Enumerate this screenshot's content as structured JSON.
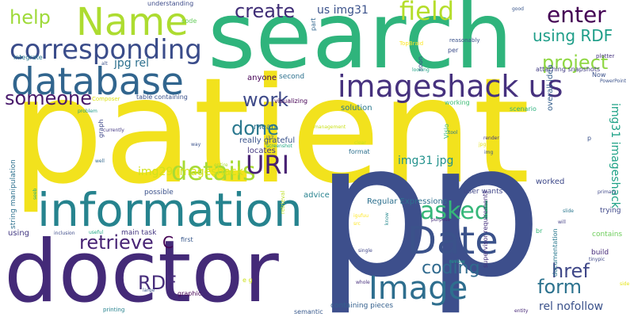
{
  "words": [
    {
      "text": "patient",
      "color": "#f2e21d"
    },
    {
      "text": "pp",
      "color": "#3d4f8c"
    },
    {
      "text": "search",
      "color": "#2fb47c"
    },
    {
      "text": "doctor",
      "color": "#442a78"
    },
    {
      "text": "information",
      "color": "#26838e"
    },
    {
      "text": "database",
      "color": "#31658e"
    },
    {
      "text": "Name",
      "color": "#addc30"
    },
    {
      "text": "Date",
      "color": "#3b528b"
    },
    {
      "text": "corresponding",
      "color": "#3a4c8a"
    },
    {
      "text": "imageshack us",
      "color": "#46317e"
    },
    {
      "text": "Image",
      "color": "#2e6e8e"
    },
    {
      "text": "create",
      "color": "#3f2d76"
    },
    {
      "text": "field",
      "color": "#b5de2b"
    },
    {
      "text": "enter",
      "color": "#440154"
    },
    {
      "text": "using RDF",
      "color": "#1f9e89"
    },
    {
      "text": "help",
      "color": "#9fda3a"
    },
    {
      "text": "details",
      "color": "#a8db34"
    },
    {
      "text": "URI",
      "color": "#482173"
    },
    {
      "text": "asked",
      "color": "#35b779"
    },
    {
      "text": "work",
      "color": "#3e4a89"
    },
    {
      "text": "done",
      "color": "#2a788e"
    },
    {
      "text": "someone",
      "color": "#48196b"
    },
    {
      "text": "project",
      "color": "#8fd744"
    },
    {
      "text": "retrieve",
      "color": "#482475"
    },
    {
      "text": "coding",
      "color": "#306a8e"
    },
    {
      "text": "href",
      "color": "#3f4788"
    },
    {
      "text": "form",
      "color": "#2c728e"
    },
    {
      "text": "RDF",
      "color": "#472d7b"
    },
    {
      "text": "C",
      "color": "#440154"
    },
    {
      "text": "img31 imageshack",
      "color": "#1fa287"
    },
    {
      "text": "img31 jpg",
      "color": "#21918c"
    },
    {
      "text": "img29 imageshack",
      "color": "#d2e21b"
    },
    {
      "text": "jpg rel",
      "color": "#2d708e"
    },
    {
      "text": "rel nofollow",
      "color": "#3b528b"
    },
    {
      "text": "us img31",
      "color": "#3b528b"
    },
    {
      "text": "anyone",
      "color": "#440154"
    },
    {
      "text": "second",
      "color": "#2d718e"
    },
    {
      "text": "solution",
      "color": "#2a788e"
    },
    {
      "text": "locates",
      "color": "#453882"
    },
    {
      "text": "mean",
      "color": "#2c728e"
    },
    {
      "text": "really grateful",
      "color": "#3a548c"
    },
    {
      "text": "visualizing",
      "color": "#440154"
    },
    {
      "text": "format",
      "color": "#2d708e"
    },
    {
      "text": "overall idea",
      "color": "#355f8d"
    },
    {
      "text": "worked",
      "color": "#3e4989"
    },
    {
      "text": "Regular Expressions",
      "color": "#2d708e"
    },
    {
      "text": "advice",
      "color": "#26828e"
    },
    {
      "text": "possible",
      "color": "#3b528b"
    },
    {
      "text": "user wants",
      "color": "#404688"
    },
    {
      "text": "main task",
      "color": "#453781"
    },
    {
      "text": "first",
      "color": "#38588c"
    },
    {
      "text": "string manipulation",
      "color": "#2d708e"
    },
    {
      "text": "graph",
      "color": "#3f4889"
    },
    {
      "text": "documentation",
      "color": "#2a788e"
    },
    {
      "text": "contains",
      "color": "#6ccd5a"
    },
    {
      "text": "build",
      "color": "#472c7a"
    },
    {
      "text": "trying",
      "color": "#3f4889"
    },
    {
      "text": "containing pieces",
      "color": "#34608d"
    },
    {
      "text": "supervisor requirements",
      "color": "#46327e"
    },
    {
      "text": "table containing",
      "color": "#3b528b"
    },
    {
      "text": "working",
      "color": "#3dbc74"
    },
    {
      "text": "scenario",
      "color": "#2db27d"
    },
    {
      "text": "attaching snapshots",
      "color": "#433e85"
    },
    {
      "text": "integrate",
      "color": "#2a778e"
    },
    {
      "text": "understanding",
      "color": "#3e4c8a"
    },
    {
      "text": "semantic",
      "color": "#38598c"
    },
    {
      "text": "graphic",
      "color": "#440154"
    },
    {
      "text": "printing",
      "color": "#26828e"
    },
    {
      "text": "using",
      "color": "#443a83"
    },
    {
      "text": "code",
      "color": "#67cc5c"
    },
    {
      "text": "part",
      "color": "#31668e"
    },
    {
      "text": "soon",
      "color": "#3e4c8a"
    },
    {
      "text": "per",
      "color": "#3d4d8a"
    },
    {
      "text": "reasonably",
      "color": "#3b528b"
    },
    {
      "text": "Now",
      "color": "#3b528b"
    },
    {
      "text": "plotter",
      "color": "#46337f"
    },
    {
      "text": "PowerPoint",
      "color": "#3b528b"
    },
    {
      "text": "TopBraid",
      "color": "#fde725"
    },
    {
      "text": "Composer",
      "color": "#dde318"
    },
    {
      "text": "looking",
      "color": "#20a486"
    },
    {
      "text": "Visio",
      "color": "#35b779"
    },
    {
      "text": "management",
      "color": "#cae11f"
    },
    {
      "text": "clear",
      "color": "#c8e020"
    },
    {
      "text": "render",
      "color": "#443983"
    },
    {
      "text": "jpg",
      "color": "#e5e419"
    },
    {
      "text": "screenshot",
      "color": "#22a884"
    },
    {
      "text": "retrieval",
      "color": "#bddf26"
    },
    {
      "text": "entire",
      "color": "#addc30"
    },
    {
      "text": "problem",
      "color": "#1e9b8a"
    },
    {
      "text": "currently",
      "color": "#443983"
    },
    {
      "text": "way",
      "color": "#3b528b"
    },
    {
      "text": "well",
      "color": "#31688e"
    },
    {
      "text": "useful",
      "color": "#22a785"
    },
    {
      "text": "inclusion",
      "color": "#3e4c8a"
    },
    {
      "text": "purpose",
      "color": "#472d7b"
    },
    {
      "text": "single",
      "color": "#404688"
    },
    {
      "text": "review",
      "color": "#1f9e89"
    },
    {
      "text": "whole",
      "color": "#462e7c"
    },
    {
      "text": "entity",
      "color": "#482878"
    },
    {
      "text": "large",
      "color": "#3b528b"
    },
    {
      "text": "e g",
      "color": "#cde11d"
    },
    {
      "text": "primary",
      "color": "#3f4889"
    },
    {
      "text": "slide",
      "color": "#2a778e"
    },
    {
      "text": "tinypic",
      "color": "#3f4889"
    },
    {
      "text": "br",
      "color": "#35b779"
    },
    {
      "text": "p",
      "color": "#3b528b"
    },
    {
      "text": "will",
      "color": "#433e85"
    },
    {
      "text": "good",
      "color": "#39568c"
    },
    {
      "text": "alt",
      "color": "#3b528b"
    },
    {
      "text": "i37",
      "color": "#3b528b"
    },
    {
      "text": "igufuu",
      "color": "#fde725"
    },
    {
      "text": "src",
      "color": "#fde725"
    },
    {
      "text": "know",
      "color": "#23888e"
    },
    {
      "text": "tool",
      "color": "#2a788e"
    },
    {
      "text": "seeb",
      "color": "#2db27d"
    },
    {
      "text": "side",
      "color": "#e5e419"
    },
    {
      "text": "img",
      "color": "#3b528b"
    }
  ]
}
